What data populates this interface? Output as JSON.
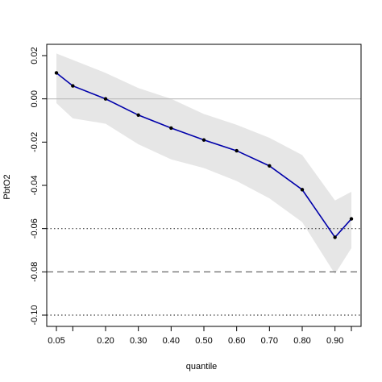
{
  "chart_data": {
    "type": "line",
    "title": "",
    "xlabel": "quantile",
    "ylabel": "PbtO2",
    "xlim": [
      0.05,
      0.95
    ],
    "ylim": [
      -0.1,
      0.02
    ],
    "x_ticks": [
      0.05,
      0.2,
      0.3,
      0.4,
      0.5,
      0.6,
      0.7,
      0.8,
      0.9
    ],
    "x_tick_labels": [
      "0.05",
      "0.20",
      "0.30",
      "0.40",
      "0.50",
      "0.60",
      "0.70",
      "0.80",
      "0.90"
    ],
    "y_ticks": [
      0.02,
      0.0,
      -0.02,
      -0.04,
      -0.06,
      -0.08,
      -0.1
    ],
    "y_tick_labels": [
      "0.02",
      "0.00",
      "-0.02",
      "-0.04",
      "-0.06",
      "-0.08",
      "-0.10"
    ],
    "series": [
      {
        "x": [
          0.05,
          0.1,
          0.2,
          0.3,
          0.4,
          0.5,
          0.6,
          0.7,
          0.8,
          0.9,
          0.95
        ],
        "values": [
          0.012,
          0.006,
          0.0,
          -0.0075,
          -0.0135,
          -0.019,
          -0.024,
          -0.031,
          -0.042,
          -0.064,
          -0.0555
        ],
        "color": "#0000aa"
      }
    ],
    "confidence_band": {
      "x": [
        0.05,
        0.1,
        0.2,
        0.3,
        0.4,
        0.5,
        0.6,
        0.7,
        0.8,
        0.9,
        0.95
      ],
      "upper": [
        0.021,
        0.018,
        0.012,
        0.005,
        0.0,
        -0.007,
        -0.012,
        -0.018,
        -0.026,
        -0.047,
        -0.043
      ],
      "lower": [
        -0.002,
        -0.009,
        -0.0115,
        -0.021,
        -0.028,
        -0.032,
        -0.038,
        -0.046,
        -0.057,
        -0.081,
        -0.069
      ],
      "color": "#e6e6e6"
    },
    "reference_lines": [
      {
        "y": 0.0,
        "style": "solid",
        "color": "#bbbbbb"
      },
      {
        "y": -0.06,
        "style": "dotted",
        "color": "#444444"
      },
      {
        "y": -0.08,
        "style": "dashed",
        "color": "#555555"
      },
      {
        "y": -0.1,
        "style": "dotted",
        "color": "#444444"
      }
    ],
    "grid": false,
    "legend": "none"
  }
}
